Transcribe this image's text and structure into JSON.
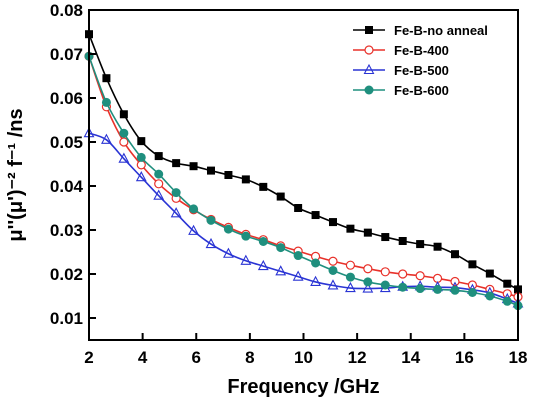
{
  "chart_data": {
    "type": "line",
    "xlabel": "Frequency /GHz",
    "ylabel": "μ''(μ')⁻² f⁻¹ /ns",
    "xlim": [
      2,
      18
    ],
    "ylim": [
      0.005,
      0.08
    ],
    "xticks": [
      2,
      4,
      6,
      8,
      10,
      12,
      14,
      16,
      18
    ],
    "yticks": [
      0.01,
      0.02,
      0.03,
      0.04,
      0.05,
      0.06,
      0.07,
      0.08
    ],
    "grid": false,
    "legend_position": "top-right",
    "series": [
      {
        "name": "Fe-B-no anneal",
        "color": "#000000",
        "marker": "square",
        "x": [
          2.0,
          2.65,
          3.3,
          3.95,
          4.6,
          5.25,
          5.9,
          6.55,
          7.2,
          7.85,
          8.5,
          9.15,
          9.8,
          10.45,
          11.1,
          11.75,
          12.4,
          13.05,
          13.7,
          14.35,
          15.0,
          15.65,
          16.3,
          16.95,
          17.6,
          18.0
        ],
        "y": [
          0.0745,
          0.0645,
          0.0563,
          0.0502,
          0.0468,
          0.0452,
          0.0445,
          0.0435,
          0.0425,
          0.0415,
          0.0398,
          0.0376,
          0.035,
          0.0334,
          0.0318,
          0.0303,
          0.0294,
          0.0284,
          0.0275,
          0.0268,
          0.0262,
          0.0245,
          0.0222,
          0.0201,
          0.0178,
          0.0165
        ]
      },
      {
        "name": "Fe-B-400",
        "color": "#e8312a",
        "marker": "open-circle",
        "x": [
          2.0,
          2.65,
          3.3,
          3.95,
          4.6,
          5.25,
          5.9,
          6.55,
          7.2,
          7.85,
          8.5,
          9.15,
          9.8,
          10.45,
          11.1,
          11.75,
          12.4,
          13.05,
          13.7,
          14.35,
          15.0,
          15.65,
          16.3,
          16.95,
          17.6,
          18.0
        ],
        "y": [
          0.0695,
          0.058,
          0.05,
          0.0448,
          0.0405,
          0.0372,
          0.0346,
          0.0324,
          0.0306,
          0.029,
          0.0278,
          0.0264,
          0.0252,
          0.024,
          0.0229,
          0.022,
          0.0212,
          0.0205,
          0.02,
          0.0196,
          0.019,
          0.0183,
          0.0175,
          0.0165,
          0.0155,
          0.0148
        ]
      },
      {
        "name": "Fe-B-500",
        "color": "#2a34d4",
        "marker": "open-triangle",
        "x": [
          2.0,
          2.65,
          3.3,
          3.95,
          4.6,
          5.25,
          5.9,
          6.55,
          7.2,
          7.85,
          8.5,
          9.15,
          9.8,
          10.45,
          11.1,
          11.75,
          12.4,
          13.05,
          13.7,
          14.35,
          15.0,
          15.65,
          16.3,
          16.95,
          17.6,
          18.0
        ],
        "y": [
          0.052,
          0.0505,
          0.0462,
          0.042,
          0.0378,
          0.0338,
          0.0298,
          0.0268,
          0.0246,
          0.023,
          0.0218,
          0.0206,
          0.0194,
          0.0182,
          0.0174,
          0.0168,
          0.0167,
          0.0168,
          0.0171,
          0.0172,
          0.017,
          0.0169,
          0.0164,
          0.0157,
          0.0143,
          0.0133
        ]
      },
      {
        "name": "Fe-B-600",
        "color": "#1f8f7e",
        "marker": "filled-circle",
        "x": [
          2.0,
          2.65,
          3.3,
          3.95,
          4.6,
          5.25,
          5.9,
          6.55,
          7.2,
          7.85,
          8.5,
          9.15,
          9.8,
          10.45,
          11.1,
          11.75,
          12.4,
          13.05,
          13.7,
          14.35,
          15.0,
          15.65,
          16.3,
          16.95,
          17.6,
          18.0
        ],
        "y": [
          0.0695,
          0.059,
          0.052,
          0.0465,
          0.0427,
          0.0385,
          0.0348,
          0.0322,
          0.0302,
          0.0286,
          0.0274,
          0.026,
          0.0242,
          0.0225,
          0.0208,
          0.0193,
          0.0182,
          0.0175,
          0.017,
          0.0167,
          0.0165,
          0.0163,
          0.0158,
          0.015,
          0.0138,
          0.0128
        ]
      }
    ]
  }
}
